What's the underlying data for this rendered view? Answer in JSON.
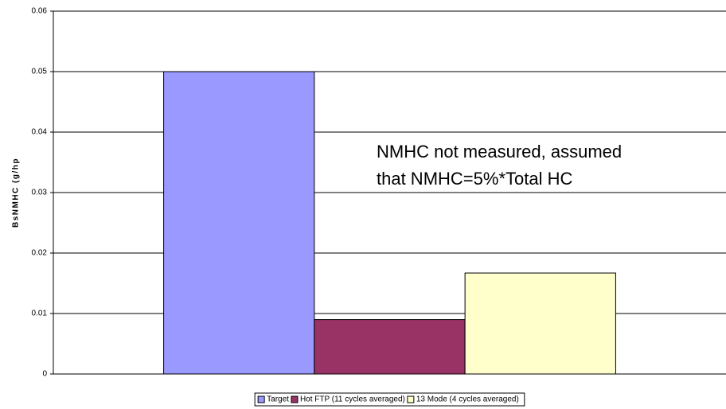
{
  "chart_data": {
    "type": "bar",
    "y_label": "BsNMHC (g/hp",
    "annotations": [
      "NMHC not measured, assumed",
      "that NMHC=5%*Total HC"
    ],
    "categories": [
      null
    ],
    "series": [
      {
        "name": "Target",
        "color": "#9999ff",
        "values": [
          0.05
        ]
      },
      {
        "name": "Hot FTP (11 cycles averaged)",
        "color": "#993366",
        "values": [
          0.009
        ]
      },
      {
        "name": "13 Mode (4 cycles averaged)",
        "color": "#ffffcc",
        "values": [
          0.0167
        ]
      }
    ],
    "ylim": [
      0,
      0.06
    ],
    "yticks": [
      0,
      0.01,
      0.02,
      0.03,
      0.04,
      0.05,
      0.06
    ],
    "grid": true,
    "legend": "bottom"
  }
}
